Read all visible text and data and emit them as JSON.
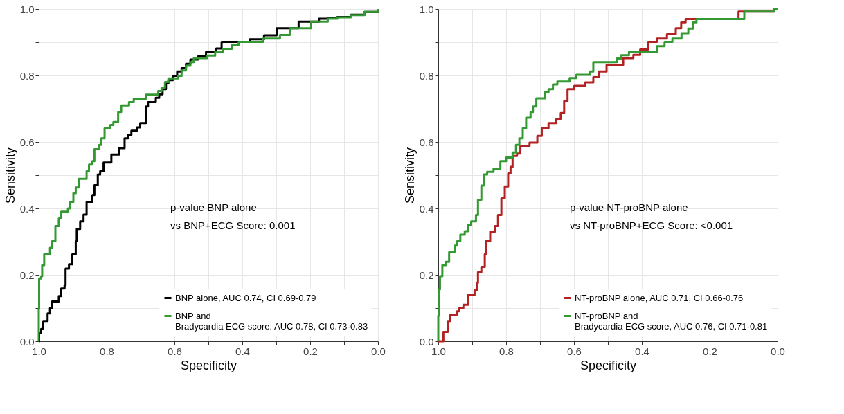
{
  "chart_data": [
    {
      "type": "step",
      "xlabel": "Specificity",
      "ylabel": "Sensitivity",
      "xlim": [
        1,
        0
      ],
      "ylim": [
        0,
        1
      ],
      "xticks": [
        {
          "value": 1,
          "label": "1.0"
        },
        {
          "value": 0.9,
          "label": null
        },
        0.8,
        {
          "value": 0.7,
          "label": null
        },
        0.6,
        {
          "value": 0.5,
          "label": null
        },
        0.4,
        {
          "value": 0.3,
          "label": null
        },
        0.2,
        {
          "value": 0.1,
          "label": null
        },
        {
          "value": 0,
          "label": "0.0"
        }
      ],
      "yticks": [
        {
          "value": 0,
          "label": "0.0"
        },
        {
          "value": 0.1,
          "label": null
        },
        0.2,
        {
          "value": 0.3,
          "label": null
        },
        0.4,
        {
          "value": 0.5,
          "label": null
        },
        0.6,
        {
          "value": 0.7,
          "label": null
        },
        0.8,
        {
          "value": 0.9,
          "label": null
        },
        {
          "value": 1,
          "label": "1.0"
        }
      ],
      "grid": true,
      "legend": "bottom right",
      "annotations": [
        "p-value BNP alone\nvs BNP+ECG Score: 0.001"
      ],
      "series": [
        {
          "name": "BNP alone, AUC 0.74, CI 0.69-0.79",
          "color": "#000000",
          "x": [
            1,
            0.999,
            0.993,
            0.987,
            0.974,
            0.967,
            0.961,
            0.941,
            0.934,
            0.924,
            0.921,
            0.911,
            0.901,
            0.891,
            0.888,
            0.878,
            0.868,
            0.859,
            0.842,
            0.836,
            0.826,
            0.819,
            0.809,
            0.786,
            0.763,
            0.747,
            0.737,
            0.727,
            0.711,
            0.701,
            0.684,
            0.678,
            0.655,
            0.645,
            0.635,
            0.625,
            0.618,
            0.605,
            0.592,
            0.579,
            0.566,
            0.553,
            0.53,
            0.507,
            0.477,
            0.461,
            0.378,
            0.336,
            0.299,
            0.234,
            0.174,
            0.148,
            0.12,
            0.08,
            0.04,
            0
          ],
          "values": [
            0,
            0.024,
            0.037,
            0.061,
            0.084,
            0.1,
            0.12,
            0.136,
            0.159,
            0.169,
            0.219,
            0.232,
            0.262,
            0.301,
            0.338,
            0.361,
            0.381,
            0.42,
            0.44,
            0.47,
            0.502,
            0.512,
            0.538,
            0.562,
            0.581,
            0.611,
            0.621,
            0.634,
            0.644,
            0.657,
            0.707,
            0.72,
            0.733,
            0.743,
            0.759,
            0.776,
            0.786,
            0.799,
            0.812,
            0.822,
            0.835,
            0.848,
            0.858,
            0.871,
            0.881,
            0.901,
            0.909,
            0.921,
            0.942,
            0.962,
            0.971,
            0.973,
            0.976,
            0.983,
            0.991,
            1
          ]
        },
        {
          "name": "BNP and\nBradycardia ECG score, AUC 0.78, CI 0.73-0.83",
          "color": "#339933",
          "x": [
            1,
            1,
            0.999,
            0.993,
            0.99,
            0.984,
            0.967,
            0.961,
            0.951,
            0.941,
            0.934,
            0.914,
            0.908,
            0.898,
            0.891,
            0.882,
            0.859,
            0.852,
            0.842,
            0.836,
            0.822,
            0.816,
            0.806,
            0.789,
            0.78,
            0.766,
            0.757,
            0.734,
            0.72,
            0.684,
            0.648,
            0.638,
            0.628,
            0.618,
            0.589,
            0.579,
            0.566,
            0.553,
            0.543,
            0.503,
            0.48,
            0.457,
            0.431,
            0.411,
            0.339,
            0.289,
            0.26,
            0.197,
            0.148,
            0.12,
            0.08,
            0.04,
            0
          ],
          "values": [
            0,
            0.097,
            0.189,
            0.196,
            0.229,
            0.262,
            0.281,
            0.301,
            0.347,
            0.37,
            0.39,
            0.4,
            0.42,
            0.446,
            0.463,
            0.489,
            0.512,
            0.532,
            0.542,
            0.578,
            0.591,
            0.611,
            0.641,
            0.651,
            0.66,
            0.69,
            0.71,
            0.72,
            0.73,
            0.742,
            0.753,
            0.763,
            0.78,
            0.791,
            0.799,
            0.815,
            0.829,
            0.84,
            0.852,
            0.86,
            0.871,
            0.88,
            0.891,
            0.901,
            0.911,
            0.922,
            0.942,
            0.962,
            0.971,
            0.975,
            0.982,
            0.991,
            1
          ]
        }
      ]
    },
    {
      "type": "step",
      "xlabel": "Specificity",
      "ylabel": "Sensitivity",
      "xlim": [
        1,
        0
      ],
      "ylim": [
        0,
        1
      ],
      "xticks": [
        {
          "value": 1,
          "label": "1.0"
        },
        {
          "value": 0.9,
          "label": null
        },
        0.8,
        {
          "value": 0.7,
          "label": null
        },
        0.6,
        {
          "value": 0.5,
          "label": null
        },
        0.4,
        {
          "value": 0.3,
          "label": null
        },
        0.2,
        {
          "value": 0.1,
          "label": null
        },
        {
          "value": 0,
          "label": "0.0"
        }
      ],
      "yticks": [
        {
          "value": 0,
          "label": "0.0"
        },
        {
          "value": 0.1,
          "label": null
        },
        0.2,
        {
          "value": 0.3,
          "label": null
        },
        0.4,
        {
          "value": 0.5,
          "label": null
        },
        0.6,
        {
          "value": 0.7,
          "label": null
        },
        0.8,
        {
          "value": 0.9,
          "label": null
        },
        {
          "value": 1,
          "label": "1.0"
        }
      ],
      "grid": true,
      "legend": "bottom right",
      "annotations": [
        "p-value NT-proBNP alone\nvs NT-proBNP+ECG Score: <0.001"
      ],
      "series": [
        {
          "name": "NT-proBNP alone, AUC 0.71, CI 0.66-0.76",
          "color": "#b22222",
          "x": [
            1,
            0.985,
            0.972,
            0.965,
            0.945,
            0.939,
            0.926,
            0.912,
            0.893,
            0.886,
            0.883,
            0.873,
            0.863,
            0.86,
            0.847,
            0.833,
            0.824,
            0.814,
            0.804,
            0.794,
            0.787,
            0.781,
            0.768,
            0.758,
            0.731,
            0.708,
            0.695,
            0.675,
            0.652,
            0.639,
            0.629,
            0.619,
            0.599,
            0.567,
            0.543,
            0.527,
            0.504,
            0.455,
            0.425,
            0.405,
            0.382,
            0.356,
            0.326,
            0.3,
            0.284,
            0.271,
            0.115,
            0.01,
            0
          ],
          "values": [
            0,
            0.028,
            0.061,
            0.08,
            0.09,
            0.1,
            0.11,
            0.139,
            0.153,
            0.176,
            0.208,
            0.224,
            0.262,
            0.301,
            0.33,
            0.347,
            0.38,
            0.43,
            0.466,
            0.505,
            0.525,
            0.558,
            0.565,
            0.588,
            0.598,
            0.618,
            0.641,
            0.657,
            0.67,
            0.687,
            0.723,
            0.759,
            0.769,
            0.779,
            0.795,
            0.812,
            0.832,
            0.852,
            0.862,
            0.878,
            0.901,
            0.911,
            0.924,
            0.942,
            0.96,
            0.97,
            0.992,
            1,
            1
          ]
        },
        {
          "name": "NT-proBNP and\nBradycardia ECG score, AUC 0.76, CI 0.71-0.81",
          "color": "#339933",
          "x": [
            1,
            1,
            0.998,
            0.995,
            0.988,
            0.978,
            0.968,
            0.952,
            0.945,
            0.935,
            0.922,
            0.912,
            0.903,
            0.889,
            0.883,
            0.873,
            0.866,
            0.856,
            0.837,
            0.817,
            0.8,
            0.781,
            0.771,
            0.761,
            0.751,
            0.741,
            0.728,
            0.721,
            0.711,
            0.685,
            0.675,
            0.662,
            0.649,
            0.613,
            0.593,
            0.553,
            0.543,
            0.474,
            0.461,
            0.438,
            0.356,
            0.333,
            0.31,
            0.283,
            0.263,
            0.249,
            0.239,
            0.098,
            0.01,
            0
          ],
          "values": [
            0,
            0.077,
            0.156,
            0.196,
            0.229,
            0.239,
            0.268,
            0.288,
            0.301,
            0.321,
            0.331,
            0.351,
            0.361,
            0.38,
            0.426,
            0.469,
            0.502,
            0.51,
            0.52,
            0.542,
            0.553,
            0.568,
            0.591,
            0.611,
            0.641,
            0.673,
            0.69,
            0.707,
            0.731,
            0.75,
            0.759,
            0.773,
            0.782,
            0.792,
            0.802,
            0.812,
            0.84,
            0.851,
            0.861,
            0.871,
            0.888,
            0.901,
            0.911,
            0.927,
            0.941,
            0.96,
            0.97,
            0.992,
            1,
            1
          ]
        }
      ]
    }
  ]
}
